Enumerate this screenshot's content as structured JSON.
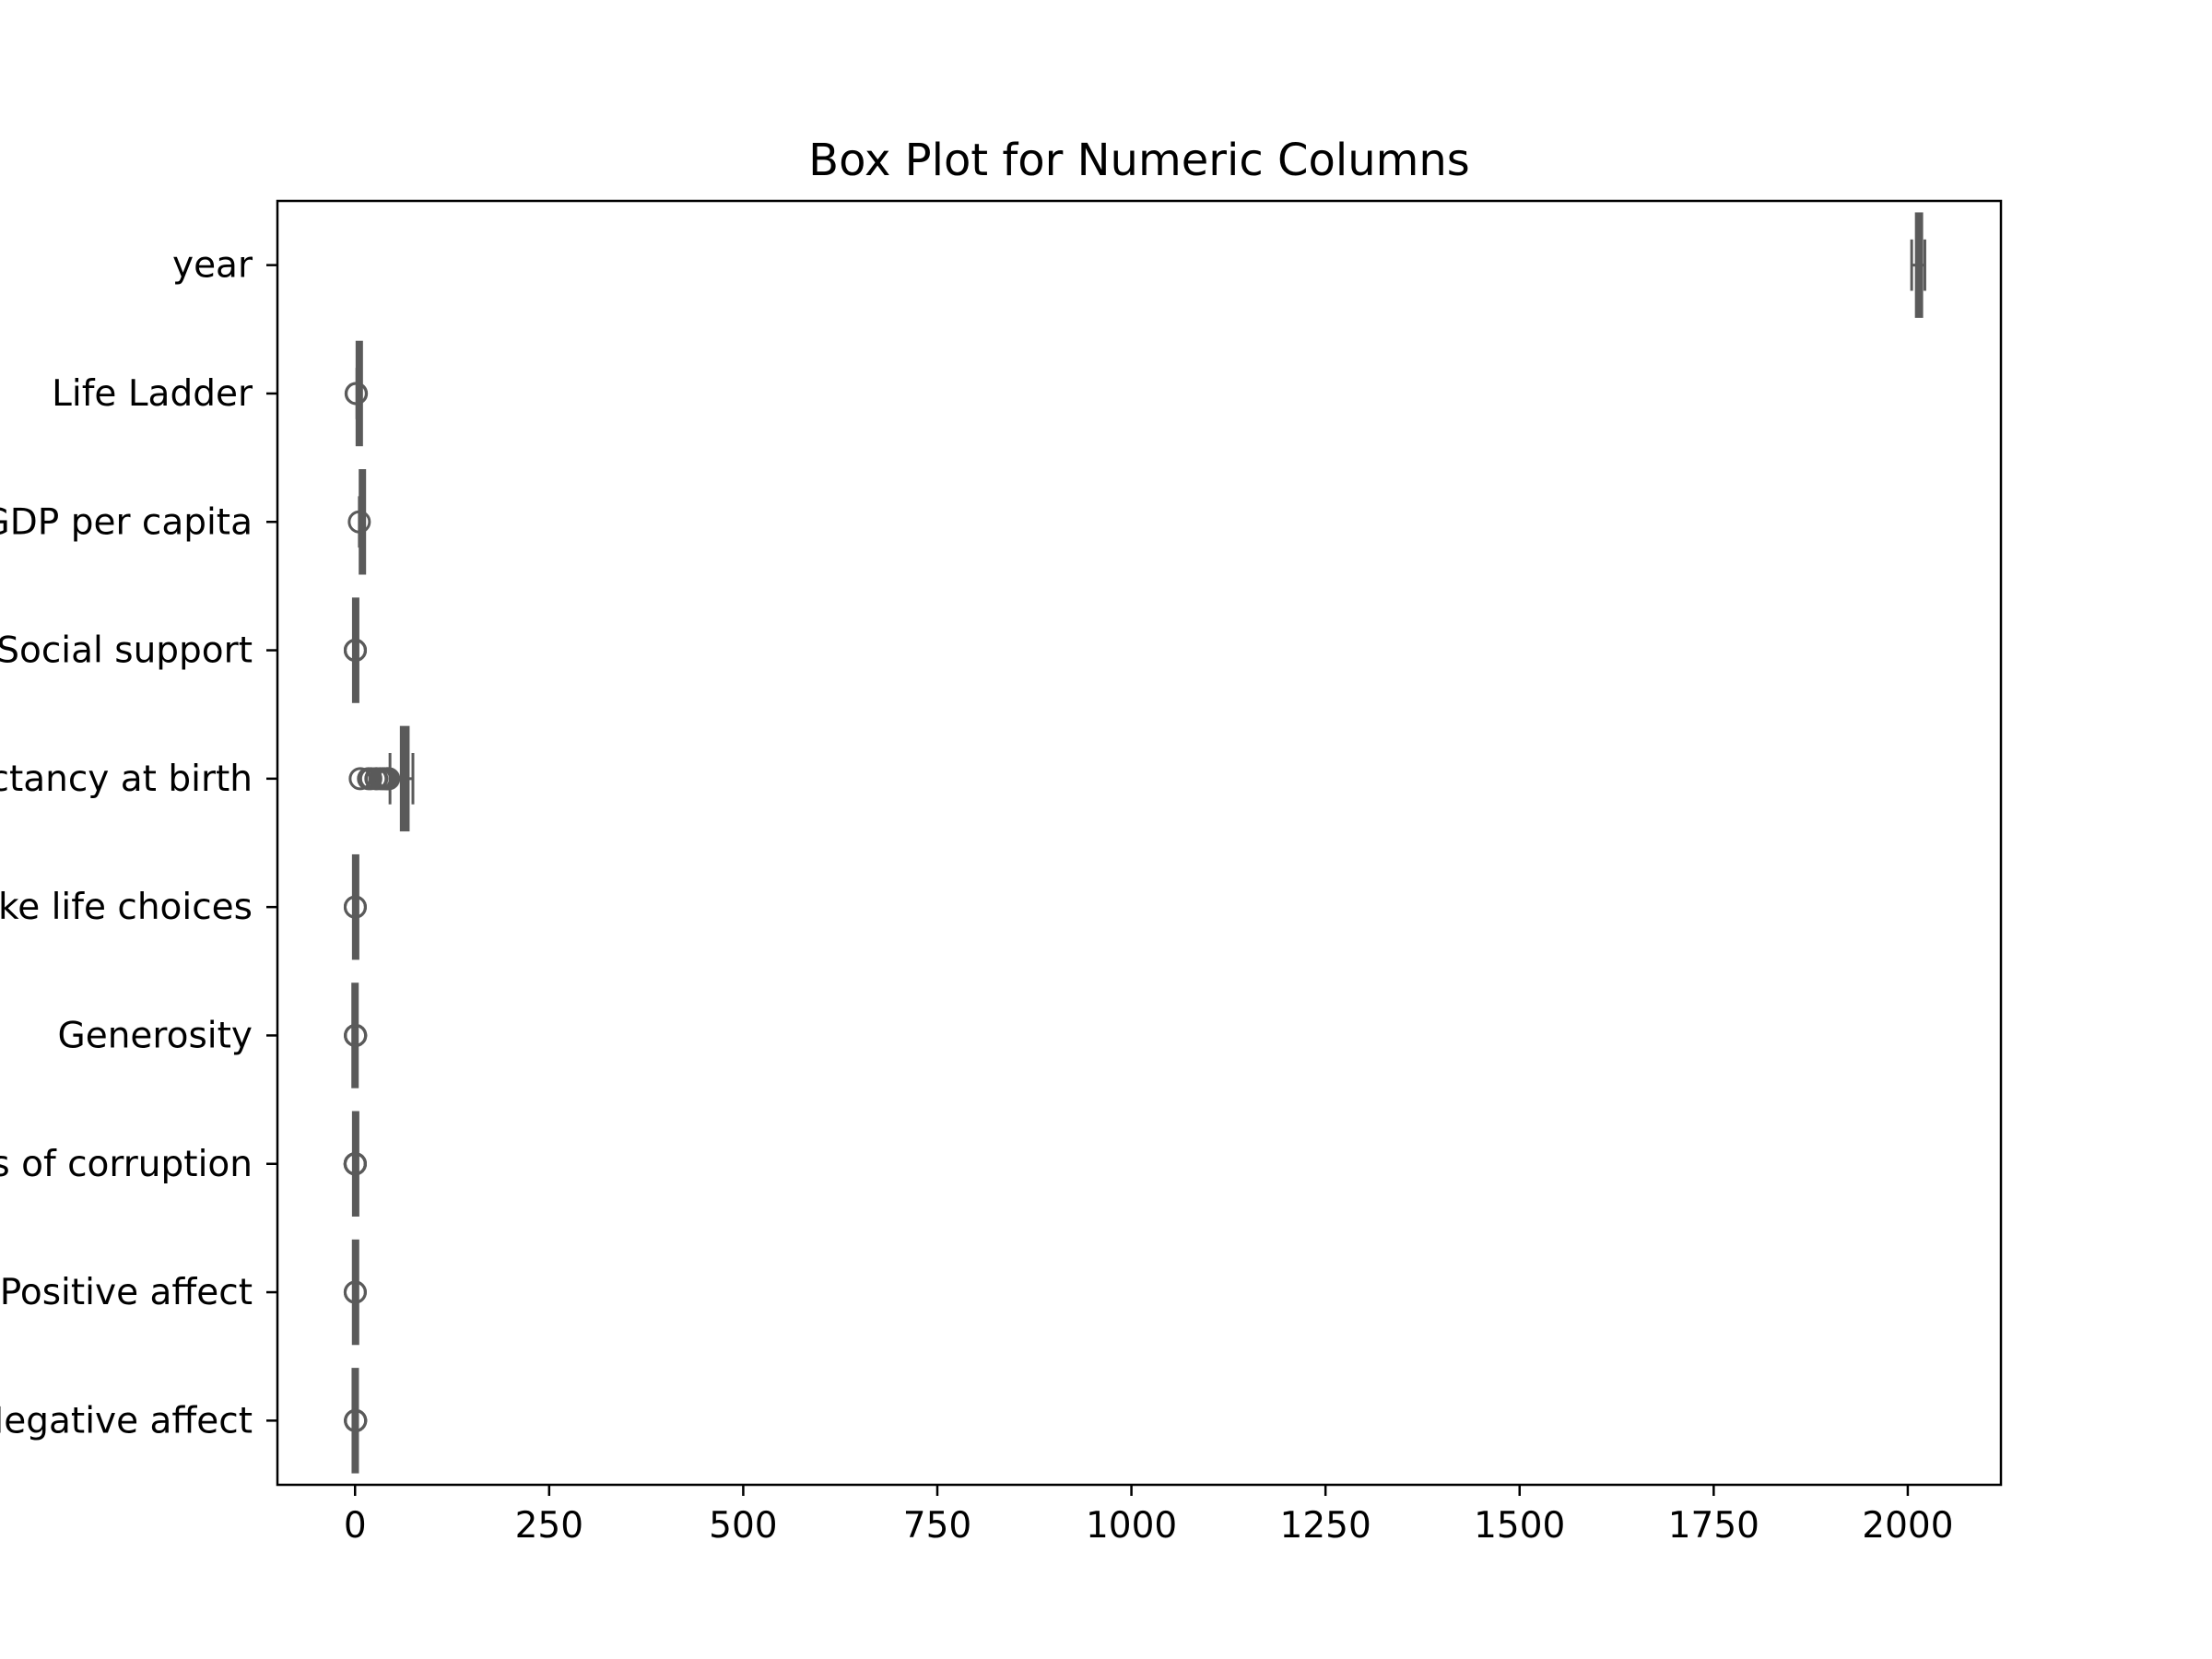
{
  "chart_data": {
    "type": "boxplot",
    "orientation": "horizontal",
    "title": "Box Plot for Numeric Columns",
    "xlabel": "",
    "ylabel": "",
    "xlim": [
      -100,
      2120
    ],
    "xticks": [
      0,
      250,
      500,
      750,
      1000,
      1250,
      1500,
      1750,
      2000
    ],
    "xtick_labels": [
      "0",
      "250",
      "500",
      "750",
      "1000",
      "1250",
      "1500",
      "1750",
      "2000"
    ],
    "grid": false,
    "box_color": "#5a5a5a",
    "categories": [
      "year",
      "Life Ladder",
      "Log GDP per capita",
      "Social support",
      "Healthy life expectancy at birth",
      "Freedom to make life choices",
      "Generosity",
      "Perceptions of corruption",
      "Positive affect",
      "Negative affect"
    ],
    "series": [
      {
        "label": "year",
        "whislo": 2005,
        "q1": 2011,
        "med": 2014,
        "q3": 2018,
        "whishi": 2022,
        "fliers": []
      },
      {
        "label": "Life Ladder",
        "whislo": 2.4,
        "q1": 4.6,
        "med": 5.4,
        "q3": 6.3,
        "whishi": 8.0,
        "fliers": [
          1.3,
          1.7
        ]
      },
      {
        "label": "Log GDP per capita",
        "whislo": 5.5,
        "q1": 8.5,
        "med": 9.5,
        "q3": 10.4,
        "whishi": 11.7,
        "fliers": [
          5.5
        ]
      },
      {
        "label": "Social support",
        "whislo": 0.5,
        "q1": 0.75,
        "med": 0.84,
        "q3": 0.9,
        "whishi": 0.99,
        "fliers": [
          0.23,
          0.29,
          0.31,
          0.35,
          0.4
        ]
      },
      {
        "label": "Healthy life expectancy at birth",
        "whislo": 45,
        "q1": 59.5,
        "med": 65,
        "q3": 68.5,
        "whishi": 74.5,
        "fliers": [
          6.7,
          17.3,
          20.3,
          26.8,
          28,
          32.3,
          35.4,
          37.8,
          40.5,
          41.4,
          42.2,
          43.3
        ]
      },
      {
        "label": "Freedom to make life choices",
        "whislo": 0.3,
        "q1": 0.66,
        "med": 0.77,
        "q3": 0.86,
        "whishi": 0.99,
        "fliers": [
          0.23,
          0.26,
          0.28
        ]
      },
      {
        "label": "Generosity",
        "whislo": -0.34,
        "q1": -0.11,
        "med": -0.02,
        "q3": 0.09,
        "whishi": 0.4,
        "fliers": [
          0.42,
          0.47,
          0.52,
          0.57,
          0.62,
          0.7
        ]
      },
      {
        "label": "Perceptions of corruption",
        "whislo": 0.39,
        "q1": 0.69,
        "med": 0.8,
        "q3": 0.87,
        "whishi": 0.98,
        "fliers": [
          0.04,
          0.07,
          0.1,
          0.15,
          0.2,
          0.25,
          0.3,
          0.35
        ]
      },
      {
        "label": "Positive affect",
        "whislo": 0.29,
        "q1": 0.57,
        "med": 0.66,
        "q3": 0.74,
        "whishi": 0.88,
        "fliers": [
          0.18,
          0.22,
          0.25
        ]
      },
      {
        "label": "Negative affect",
        "whislo": 0.08,
        "q1": 0.21,
        "med": 0.26,
        "q3": 0.32,
        "whishi": 0.48,
        "fliers": [
          0.5,
          0.53,
          0.56,
          0.6,
          0.64,
          0.7
        ]
      }
    ]
  }
}
